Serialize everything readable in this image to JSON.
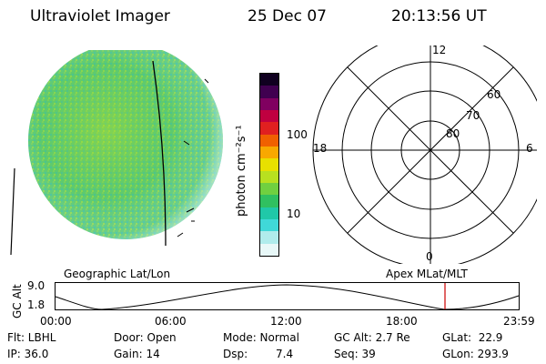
{
  "header": {
    "instrument": "Ultraviolet Imager",
    "date": "25 Dec 07",
    "time": "20:13:56 UT"
  },
  "colorbar": {
    "unit_label": "photon cm⁻²s⁻¹",
    "ticks": [
      "100",
      "10"
    ],
    "colors": [
      "#e8f8f8",
      "#b0ecec",
      "#40d8d8",
      "#20c8a8",
      "#30c060",
      "#70d040",
      "#b8e020",
      "#e8e000",
      "#f8a800",
      "#f06000",
      "#e02020",
      "#c00040",
      "#800060",
      "#400050",
      "#100020"
    ]
  },
  "polar": {
    "mlt_labels": [
      "12",
      "18",
      "6",
      "0"
    ],
    "lat_labels": [
      "60",
      "70",
      "80"
    ]
  },
  "geo_image": {
    "colors": {
      "main": "#58c878",
      "light": "#c8f0f0",
      "yellow": "#a8dc30"
    }
  },
  "timeline": {
    "left_title": "Geographic Lat/Lon",
    "right_title": "Apex MLat/MLT",
    "axis_label": "GC Alt",
    "y_ticks": [
      "9.0",
      "1.8"
    ],
    "x_ticks": [
      "00:00",
      "06:00",
      "12:00",
      "18:00",
      "23:59"
    ],
    "cursor_color": "#cc0000"
  },
  "info": {
    "filter": "Flt: LBHL",
    "ip": "IP: 36.0",
    "door": "Door: Open",
    "gain": "Gain: 14",
    "mode": "Mode: Normal",
    "dsp_label": "Dsp:",
    "dsp_value": "7.4",
    "gc_alt": "GC Alt: 2.7 Re",
    "seq": "Seq: 39",
    "glat": "GLat:  22.9",
    "glon": "GLon: 293.9"
  }
}
